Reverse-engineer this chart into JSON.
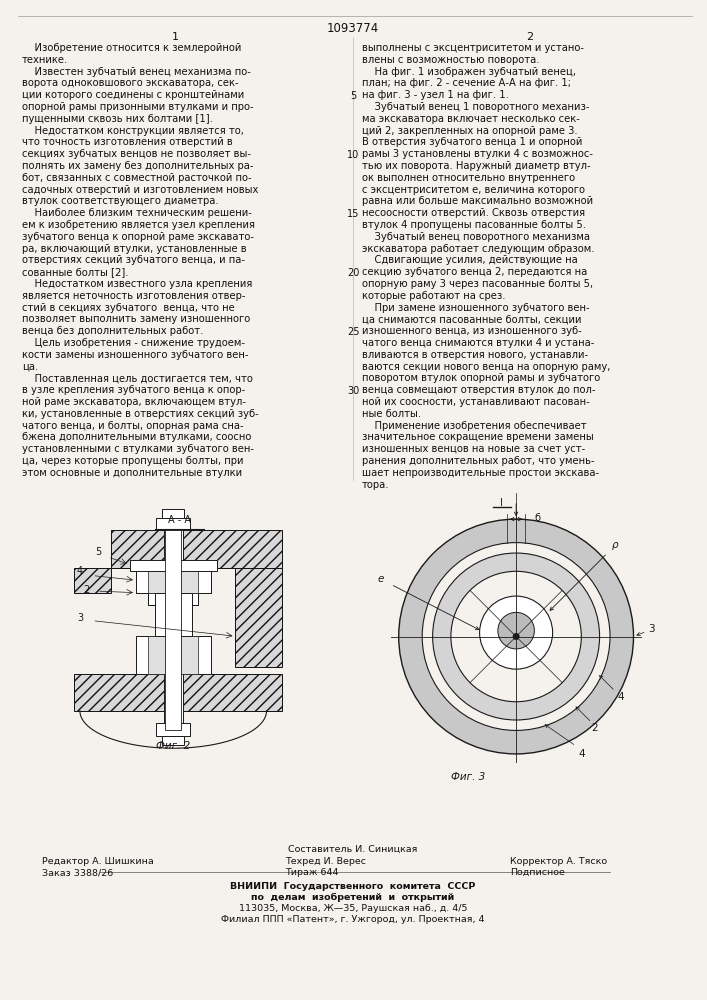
{
  "patent_number": "1093774",
  "bg_color": "#f5f2ed",
  "text_color": "#111111",
  "col1_lines": [
    "    Изобретение относится к землеройной",
    "технике.",
    "    Известен зубчатый венец механизма по-",
    "ворота одноковшового экскаватора, сек-",
    "ции которого соединены с кронштейнами",
    "опорной рамы призонными втулками и про-",
    "пущенными сквозь них болтами [1].",
    "    Недостатком конструкции является то,",
    "что точность изготовления отверстий в",
    "секциях зубчатых венцов не позволяет вы-",
    "полнять их замену без дополнительных ра-",
    "бот, связанных с совместной расточкой по-",
    "садочных отверстий и изготовлением новых",
    "втулок соответствующего диаметра.",
    "    Наиболее близким техническим решени-",
    "ем к изобретению является узел крепления",
    "зубчатого венца к опорной раме экскавато-",
    "ра, включающий втулки, установленные в",
    "отверстиях секций зубчатого венца, и па-",
    "сованные болты [2].",
    "    Недостатком известного узла крепления",
    "является неточность изготовления отвер-",
    "стий в секциях зубчатого  венца, что не",
    "позволяет выполнить замену изношенного",
    "венца без дополнительных работ.",
    "    Цель изобретения - снижение трудоем-",
    "кости замены изношенного зубчатого вен-",
    "ца.",
    "    Поставленная цель достигается тем, что",
    "в узле крепления зубчатого венца к опор-",
    "ной раме экскаватора, включающем втул-",
    "ки, установленные в отверстиях секций зуб-",
    "чатого венца, и болты, опорная рама сна-",
    "бжена дополнительными втулками, соосно",
    "установленными с втулками зубчатого вен-",
    "ца, через которые пропущены болты, при",
    "этом основные и дополнительные втулки"
  ],
  "col2_lines": [
    "выполнены с эксцентриситетом и устано-",
    "влены с возможностью поворота.",
    "    На фиг. 1 изображен зубчатый венец,",
    "план; на фиг. 2 - сечение А-А на фиг. 1;",
    "на фиг. 3 - узел 1 на фиг. 1.",
    "    Зубчатый венец 1 поворотного механиз-",
    "ма экскаватора включает несколько сек-",
    "ций 2, закрепленных на опорной раме 3.",
    "В отверстия зубчатого венца 1 и опорной",
    "рамы 3 установлены втулки 4 с возможнос-",
    "тью их поворота. Наружный диаметр втул-",
    "ок выполнен относительно внутреннего",
    "с эксцентриситетом e, величина которого",
    "равна или больше максимально возможной",
    "несоосности отверстий. Сквозь отверстия",
    "втулок 4 пропущены пасованные болты 5.",
    "    Зубчатый венец поворотного механизма",
    "экскаватора работает следующим образом.",
    "    Сдвигающие усилия, действующие на",
    "секцию зубчатого венца 2, передаются на",
    "опорную раму 3 через пасованные болты 5,",
    "которые работают на срез.",
    "    При замене изношенного зубчатого вен-",
    "ца снимаются пасованные болты, секции",
    "изношенного венца, из изношенного зуб-",
    "чатого венца снимаются втулки 4 и устана-",
    "вливаются в отверстия нового, устанавли-",
    "ваются секции нового венца на опорную раму,",
    "поворотом втулок опорной рамы и зубчатого",
    "венца совмещают отверстия втулок до пол-",
    "ной их соосности, устанавливают пасован-",
    "ные болты.",
    "    Применение изобретения обеспечивает",
    "значительное сокращение времени замены",
    "изношенных венцов на новые за счет уст-",
    "ранения дополнительных работ, что умень-",
    "шает непроизводительные простои экскава-",
    "тора."
  ],
  "line_numbers": [
    5,
    10,
    15,
    20,
    25,
    30
  ],
  "line_number_rows": [
    4,
    9,
    14,
    19,
    24,
    29
  ],
  "footer_composer": "Составитель И. Синицкая",
  "footer_editor": "Редактор А. Шишкина",
  "footer_order": "Заказ 3388/26",
  "footer_tech": "Техред И. Верес",
  "footer_circ": "Тираж 644",
  "footer_corr": "Корректор А. Тяско",
  "footer_sign": "Подписное",
  "footer_vniip1": "ВНИИПИ  Государственного  комитета  СССР",
  "footer_vniip2": "по  делам  изобретений  и  открытий",
  "footer_addr1": "113035, Москва, Ж—35, Раушская наб., д. 4/5",
  "footer_addr2": "Филиал ППП «Патент», г. Ужгород, ул. Проектная, 4"
}
